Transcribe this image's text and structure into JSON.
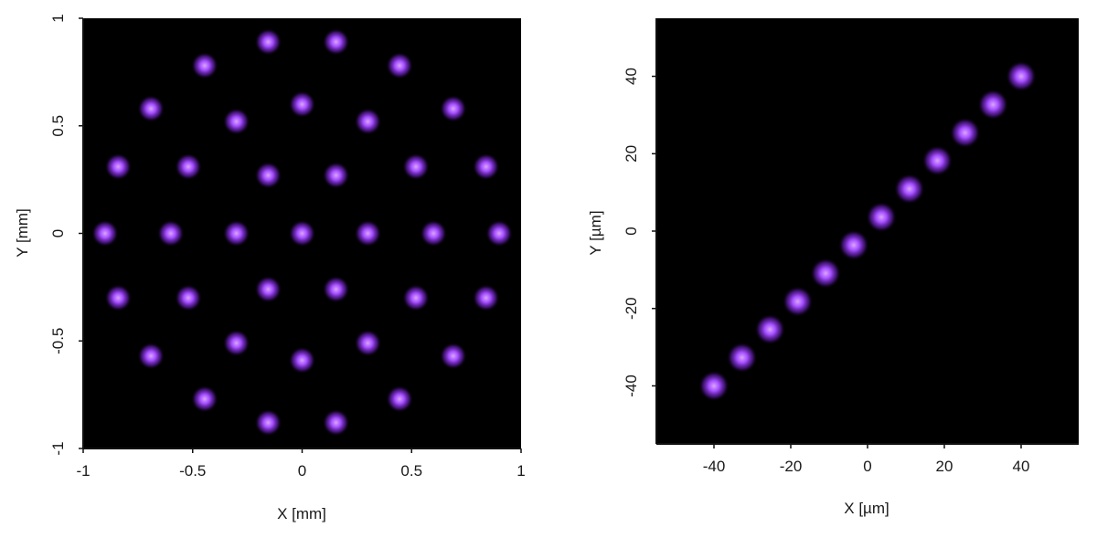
{
  "colors": {
    "spot": "#9b3dff",
    "spot_core": "#c98bff",
    "background": "#000000"
  },
  "chart_data": [
    {
      "type": "scatter",
      "xlabel": "X [mm]",
      "ylabel": "Y [mm]",
      "xlim": [
        -1.0,
        1.0
      ],
      "ylim": [
        -1.0,
        1.0
      ],
      "xticks": [
        "-1",
        "-0.5",
        "0",
        "0.5",
        "1"
      ],
      "yticks": [
        "-1",
        "-0.5",
        "0",
        "0.5",
        "1"
      ],
      "xtick_values": [
        -1,
        -0.5,
        0,
        0.5,
        1
      ],
      "ytick_values": [
        -1,
        -0.5,
        0,
        0.5,
        1
      ],
      "grid": false,
      "points": [
        [
          -0.155,
          0.89
        ],
        [
          0.155,
          0.89
        ],
        [
          -0.445,
          0.78
        ],
        [
          0.445,
          0.78
        ],
        [
          -0.69,
          0.58
        ],
        [
          0.69,
          0.58
        ],
        [
          -0.3,
          0.52
        ],
        [
          0.0,
          0.6
        ],
        [
          0.3,
          0.52
        ],
        [
          -0.84,
          0.31
        ],
        [
          -0.52,
          0.31
        ],
        [
          -0.155,
          0.27
        ],
        [
          0.155,
          0.27
        ],
        [
          0.52,
          0.31
        ],
        [
          0.84,
          0.31
        ],
        [
          -0.9,
          0.0
        ],
        [
          -0.6,
          0.0
        ],
        [
          -0.3,
          0.0
        ],
        [
          0.0,
          0.0
        ],
        [
          0.3,
          0.0
        ],
        [
          0.6,
          0.0
        ],
        [
          0.9,
          0.0
        ],
        [
          -0.84,
          -0.3
        ],
        [
          -0.52,
          -0.3
        ],
        [
          -0.155,
          -0.26
        ],
        [
          0.155,
          -0.26
        ],
        [
          0.52,
          -0.3
        ],
        [
          0.84,
          -0.3
        ],
        [
          -0.3,
          -0.51
        ],
        [
          0.0,
          -0.59
        ],
        [
          0.3,
          -0.51
        ],
        [
          -0.69,
          -0.57
        ],
        [
          0.69,
          -0.57
        ],
        [
          -0.445,
          -0.77
        ],
        [
          0.445,
          -0.77
        ],
        [
          -0.155,
          -0.88
        ],
        [
          0.155,
          -0.88
        ]
      ]
    },
    {
      "type": "scatter",
      "xlabel": "X [µm]",
      "ylabel": "Y [µm]",
      "xlim": [
        -55,
        55
      ],
      "ylim": [
        -55,
        55
      ],
      "xticks": [
        "-40",
        "-20",
        "0",
        "20",
        "40"
      ],
      "yticks": [
        "-40",
        "-20",
        "0",
        "20",
        "40"
      ],
      "xtick_values": [
        -40,
        -20,
        0,
        20,
        40
      ],
      "ytick_values": [
        -40,
        -20,
        0,
        20,
        40
      ],
      "grid": false,
      "points": [
        [
          -40,
          -40
        ],
        [
          -32.7,
          -32.7
        ],
        [
          -25.4,
          -25.4
        ],
        [
          -18.2,
          -18.2
        ],
        [
          -10.9,
          -10.9
        ],
        [
          -3.6,
          -3.6
        ],
        [
          3.6,
          3.6
        ],
        [
          10.9,
          10.9
        ],
        [
          18.2,
          18.2
        ],
        [
          25.4,
          25.4
        ],
        [
          32.7,
          32.7
        ],
        [
          40,
          40
        ]
      ]
    }
  ]
}
